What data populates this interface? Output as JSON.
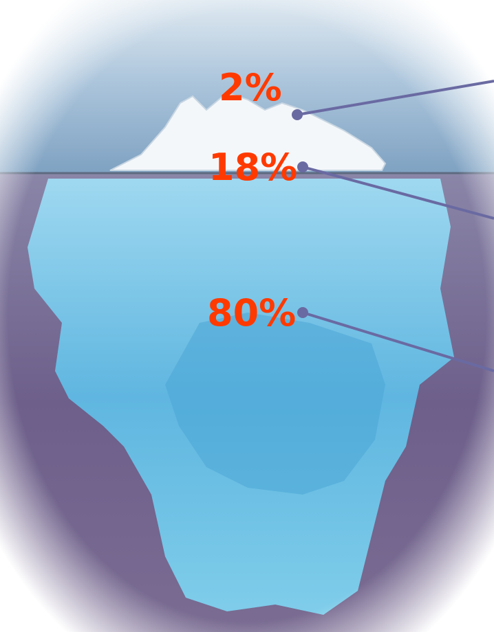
{
  "labels": [
    "2%",
    "18%",
    "80%"
  ]
}
